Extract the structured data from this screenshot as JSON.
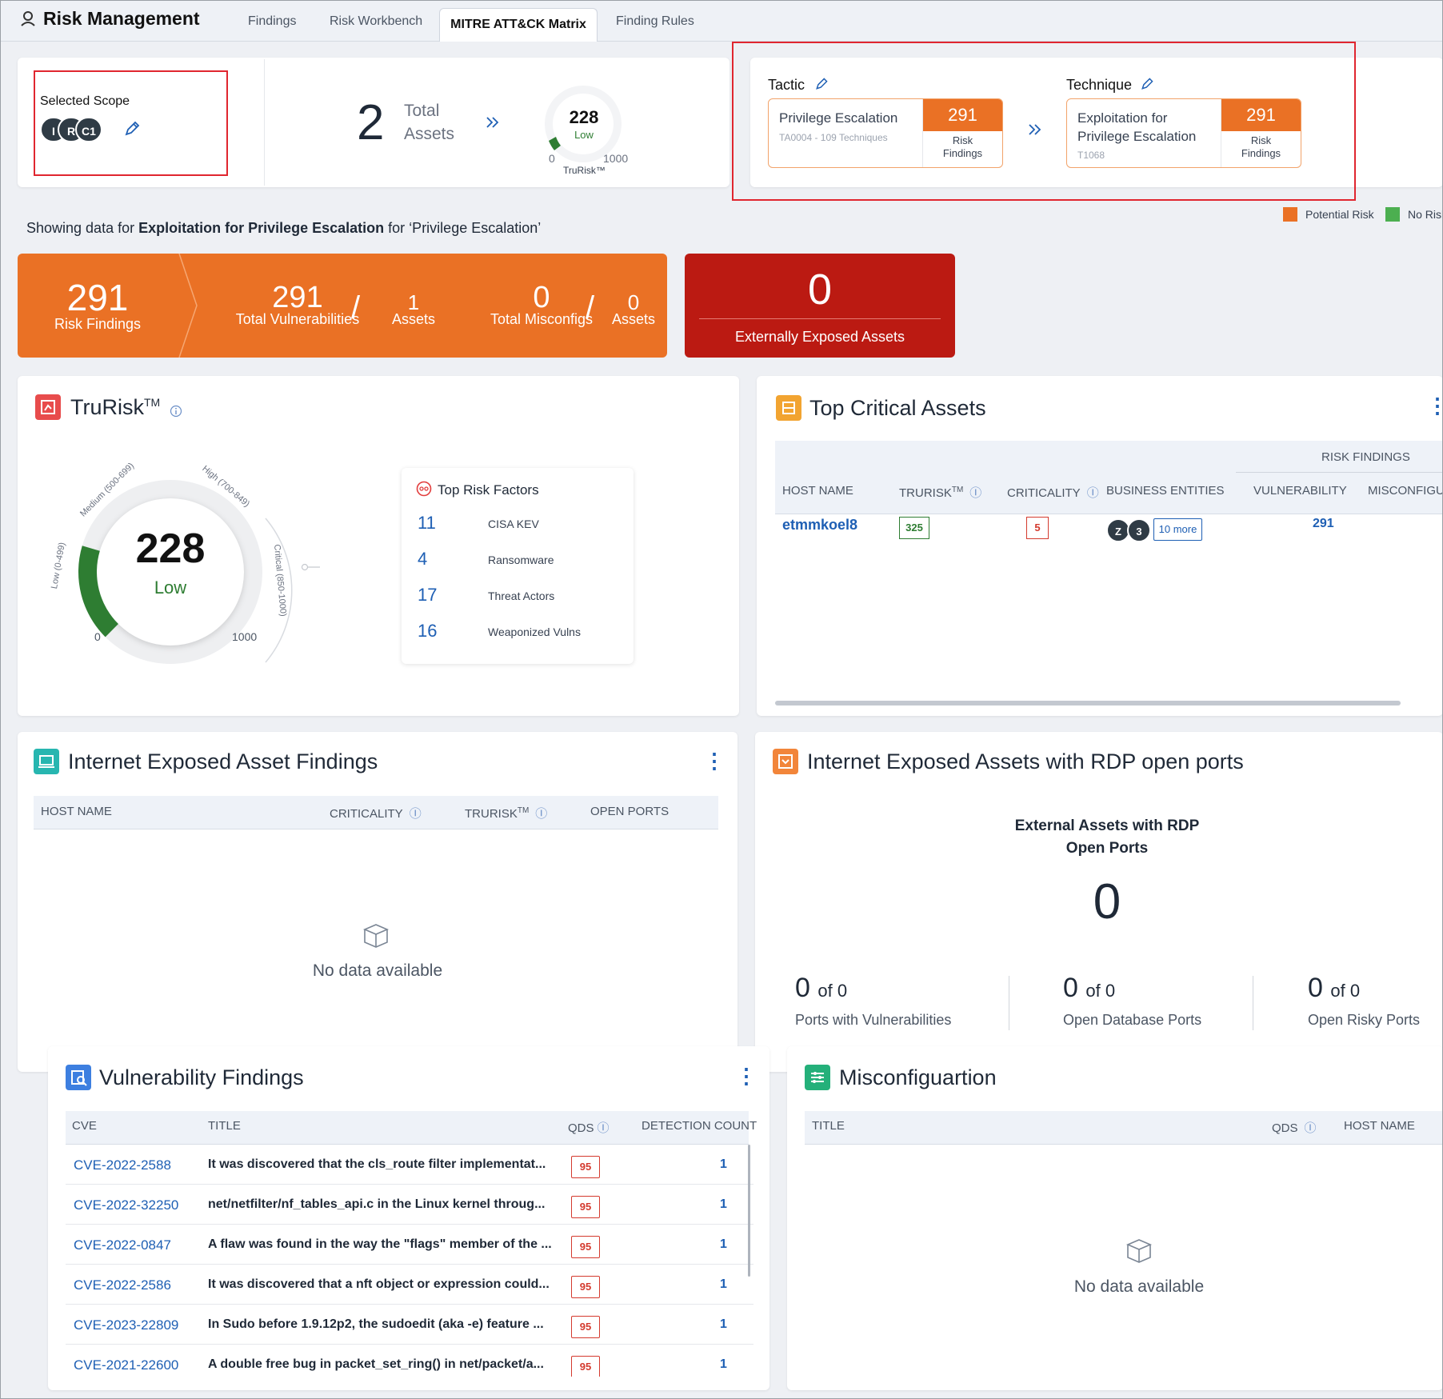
{
  "app": {
    "title": "Risk Management"
  },
  "tabs": [
    {
      "label": "Findings"
    },
    {
      "label": "Risk Workbench"
    },
    {
      "label": "MITRE ATT&CK Matrix"
    },
    {
      "label": "Finding Rules"
    }
  ],
  "scope": {
    "label": "Selected Scope",
    "tags": [
      "I",
      "R",
      "C1"
    ]
  },
  "assets_summary": {
    "count": "2",
    "label_line1": "Total",
    "label_line2": "Assets",
    "gauge_value": "228",
    "gauge_level": "Low",
    "gauge_min": "0",
    "gauge_max": "1000",
    "gauge_caption": "TruRisk™"
  },
  "tactic": {
    "heading": "Tactic",
    "name": "Privilege Escalation",
    "sub": "TA0004 - 109 Techniques",
    "count": "291",
    "count_label_1": "Risk",
    "count_label_2": "Findings"
  },
  "technique": {
    "heading": "Technique",
    "name_line1": "Exploitation for",
    "name_line2": "Privilege Escalation",
    "sub": "T1068",
    "count": "291",
    "count_label_1": "Risk",
    "count_label_2": "Findings"
  },
  "legend": {
    "potential": "Potential Risk",
    "norisk": "No Risk",
    "colors": {
      "potential": "#ea7125",
      "norisk": "#4caf50"
    }
  },
  "showing": {
    "prefix": "Showing data for ",
    "technique": "Exploitation for Privilege Escalation",
    "middle": " for ",
    "tactic": "‘Privilege Escalation’"
  },
  "banner": {
    "risk_findings": "291",
    "risk_findings_label": "Risk Findings",
    "total_vulns": "291",
    "total_vulns_label": "Total Vulnerabilities",
    "vuln_assets": "1",
    "vuln_assets_label": "Assets",
    "total_misconfigs": "0",
    "total_misconfigs_label": "Total Misconfigs",
    "misconfig_assets": "0",
    "misconfig_assets_label": "Assets",
    "exposed": "0",
    "exposed_label": "Externally Exposed Assets"
  },
  "trurisk": {
    "title": "TruRisk",
    "tm": "TM",
    "value": "228",
    "level": "Low",
    "min": "0",
    "max": "1000",
    "fill_fraction": 0.228,
    "band_low": "Low (0-499)",
    "band_medium": "Medium (500-699)",
    "band_high": "High (700-849)",
    "band_critical": "Critical (850-1000)",
    "factors_title": "Top Risk Factors",
    "factors": [
      {
        "count": "11",
        "label": "CISA KEV"
      },
      {
        "count": "4",
        "label": "Ransomware"
      },
      {
        "count": "17",
        "label": "Threat Actors"
      },
      {
        "count": "16",
        "label": "Weaponized Vulns"
      }
    ]
  },
  "top_critical": {
    "title": "Top Critical Assets",
    "group_header": "RISK FINDINGS",
    "columns": [
      "HOST NAME",
      "TRURISK",
      "CRITICALITY",
      "BUSINESS ENTITIES",
      "VULNERABILITY",
      "MISCONFIGURA"
    ],
    "tm": "TM",
    "row": {
      "host": "etmmkoel8",
      "trurisk": "325",
      "criticality": "5",
      "entities": [
        "Z",
        "3"
      ],
      "more": "10 more",
      "vulnerability": "291"
    }
  },
  "internet_exposed": {
    "title": "Internet Exposed Asset Findings",
    "columns": [
      "HOST NAME",
      "CRITICALITY",
      "TRURISK",
      "OPEN PORTS"
    ],
    "tm": "TM",
    "empty": "No data available"
  },
  "rdp": {
    "title": "Internet Exposed Assets with RDP open ports",
    "sub_line1": "External Assets with RDP",
    "sub_line2": "Open Ports",
    "value": "0",
    "stats": [
      {
        "value": "0",
        "of": "of 0",
        "label": "Ports with Vulnerabilities"
      },
      {
        "value": "0",
        "of": "of 0",
        "label": "Open Database Ports"
      },
      {
        "value": "0",
        "of": "of 0",
        "label": "Open Risky Ports"
      }
    ]
  },
  "vuln_findings": {
    "title": "Vulnerability Findings",
    "columns": [
      "CVE",
      "TITLE",
      "QDS",
      "DETECTION COUNT"
    ],
    "rows": [
      {
        "cve": "CVE-2022-2588",
        "title": "It was discovered that the cls_route filter implementat...",
        "qds": "95",
        "count": "1"
      },
      {
        "cve": "CVE-2022-32250",
        "title": "net/netfilter/nf_tables_api.c in the Linux kernel throug...",
        "qds": "95",
        "count": "1"
      },
      {
        "cve": "CVE-2022-0847",
        "title": "A flaw was found in the way the \"flags\" member of the ...",
        "qds": "95",
        "count": "1"
      },
      {
        "cve": "CVE-2022-2586",
        "title": "It was discovered that a nft object or expression could...",
        "qds": "95",
        "count": "1"
      },
      {
        "cve": "CVE-2023-22809",
        "title": "In Sudo before 1.9.12p2, the sudoedit (aka -e) feature ...",
        "qds": "95",
        "count": "1"
      },
      {
        "cve": "CVE-2021-22600",
        "title": "A double free bug in packet_set_ring() in net/packet/a...",
        "qds": "95",
        "count": "1"
      }
    ]
  },
  "misconfig": {
    "title": "Misconfiguartion",
    "columns": [
      "TITLE",
      "QDS",
      "HOST NAME"
    ],
    "empty": "No data available"
  }
}
